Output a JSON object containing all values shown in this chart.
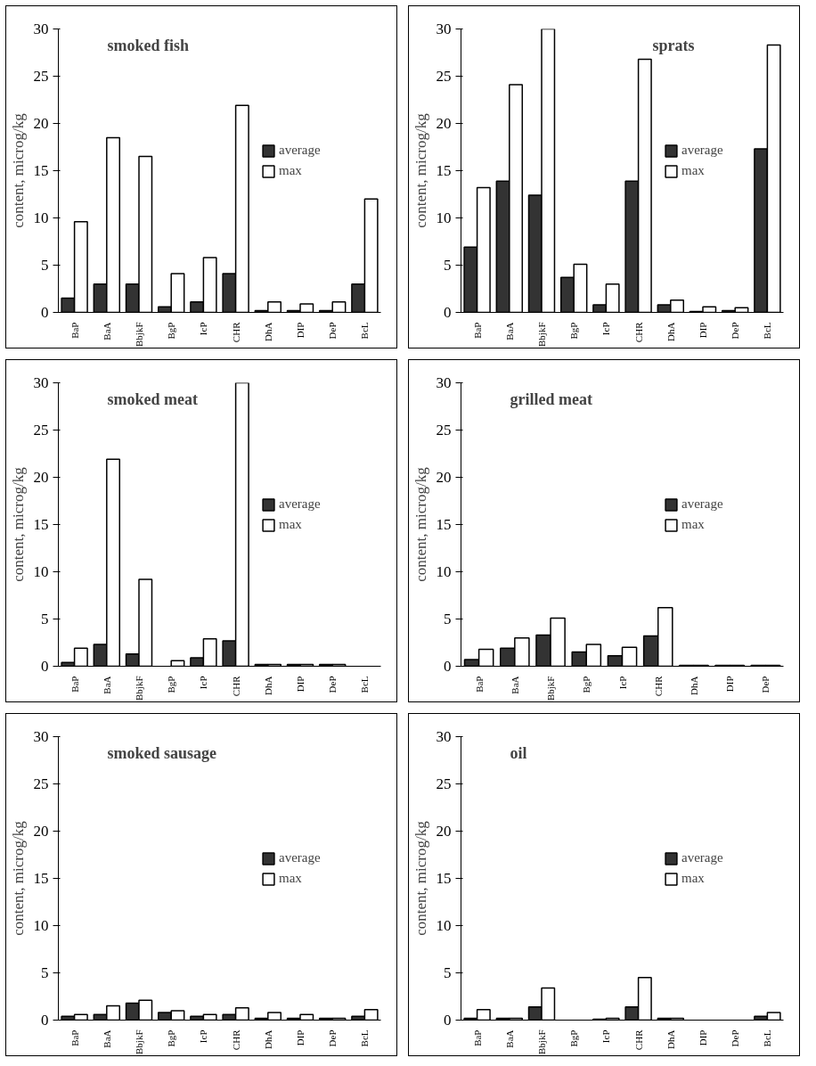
{
  "chart_data": [
    {
      "type": "bar",
      "title": "smoked fish",
      "ylabel": "content, microg/kg",
      "categories": [
        "BaP",
        "BaA",
        "BbjkF",
        "BgP",
        "IcP",
        "CHR",
        "DhA",
        "DIP",
        "DeP",
        "BcL"
      ],
      "ylim": [
        0,
        30
      ],
      "yticks": [
        0,
        5,
        10,
        15,
        20,
        25,
        30
      ],
      "grid": false,
      "legend": "right",
      "series": [
        {
          "name": "average",
          "color": "#333333",
          "values": [
            1.5,
            3,
            3,
            0.6,
            1.1,
            4.1,
            0.2,
            0.2,
            0.2,
            3
          ]
        },
        {
          "name": "max",
          "color": "#ffffff",
          "values": [
            9.6,
            18.5,
            16.5,
            4.1,
            5.8,
            21.9,
            1.1,
            0.9,
            1.1,
            12
          ]
        }
      ]
    },
    {
      "type": "bar",
      "title": "sprats",
      "ylabel": "content, microg/kg",
      "categories": [
        "BaP",
        "BaA",
        "BbjkF",
        "BgP",
        "IcP",
        "CHR",
        "DhA",
        "DIP",
        "DeP",
        "BcL"
      ],
      "ylim": [
        0,
        30
      ],
      "yticks": [
        0,
        5,
        10,
        15,
        20,
        25,
        30
      ],
      "grid": false,
      "legend": "right",
      "series": [
        {
          "name": "average",
          "color": "#333333",
          "values": [
            6.9,
            13.9,
            12.4,
            3.7,
            0.8,
            13.9,
            0.8,
            0.1,
            0.2,
            17.3
          ]
        },
        {
          "name": "max",
          "color": "#ffffff",
          "values": [
            13.2,
            24.1,
            30,
            5.1,
            3,
            26.8,
            1.3,
            0.6,
            0.5,
            28.3
          ]
        }
      ]
    },
    {
      "type": "bar",
      "title": "smoked meat",
      "ylabel": "content, microg/kg",
      "categories": [
        "BaP",
        "BaA",
        "BbjkF",
        "BgP",
        "IcP",
        "CHR",
        "DhA",
        "DIP",
        "DeP",
        "BcL"
      ],
      "ylim": [
        0,
        30
      ],
      "yticks": [
        0,
        5,
        10,
        15,
        20,
        25,
        30
      ],
      "grid": false,
      "legend": "right",
      "series": [
        {
          "name": "average",
          "color": "#333333",
          "values": [
            0.4,
            2.3,
            1.3,
            null,
            0.9,
            2.7,
            0.2,
            0.2,
            0.2,
            null
          ]
        },
        {
          "name": "max",
          "color": "#ffffff",
          "values": [
            1.9,
            21.9,
            9.2,
            0.6,
            2.9,
            30,
            0.2,
            0.2,
            0.2,
            null
          ]
        }
      ]
    },
    {
      "type": "bar",
      "title": "grilled meat",
      "ylabel": "content, microg/kg",
      "categories": [
        "BaP",
        "BaA",
        "BbjkF",
        "BgP",
        "IcP",
        "CHR",
        "DhA",
        "DIP",
        "DeP"
      ],
      "ylim": [
        0,
        30
      ],
      "yticks": [
        0,
        5,
        10,
        15,
        20,
        25,
        30
      ],
      "grid": false,
      "legend": "right",
      "series": [
        {
          "name": "average",
          "color": "#333333",
          "values": [
            0.7,
            1.9,
            3.3,
            1.5,
            1.1,
            3.2,
            0.1,
            0.1,
            0.1
          ]
        },
        {
          "name": "max",
          "color": "#ffffff",
          "values": [
            1.8,
            3,
            5.1,
            2.3,
            2,
            6.2,
            0.1,
            0.1,
            0.1
          ]
        }
      ]
    },
    {
      "type": "bar",
      "title": "smoked sausage",
      "ylabel": "content, microg/kg",
      "categories": [
        "BaP",
        "BaA",
        "BbjkF",
        "BgP",
        "IcP",
        "CHR",
        "DhA",
        "DIP",
        "DeP",
        "BcL"
      ],
      "ylim": [
        0,
        30
      ],
      "yticks": [
        0,
        5,
        10,
        15,
        20,
        25,
        30
      ],
      "grid": false,
      "legend": "right",
      "series": [
        {
          "name": "average",
          "color": "#333333",
          "values": [
            0.4,
            0.6,
            1.8,
            0.8,
            0.4,
            0.6,
            0.2,
            0.2,
            0.2,
            0.4
          ]
        },
        {
          "name": "max",
          "color": "#ffffff",
          "values": [
            0.6,
            1.5,
            2.1,
            1.0,
            0.6,
            1.3,
            0.8,
            0.6,
            0.2,
            1.1
          ]
        }
      ]
    },
    {
      "type": "bar",
      "title": "oil",
      "ylabel": "content, microg/kg",
      "categories": [
        "BaP",
        "BaA",
        "BbjkF",
        "BgP",
        "IcP",
        "CHR",
        "DhA",
        "DIP",
        "DeP",
        "BcL"
      ],
      "ylim": [
        0,
        30
      ],
      "yticks": [
        0,
        5,
        10,
        15,
        20,
        25,
        30
      ],
      "grid": false,
      "legend": "right",
      "series": [
        {
          "name": "average",
          "color": "#333333",
          "values": [
            0.2,
            0.2,
            1.4,
            null,
            0.1,
            1.4,
            0.2,
            null,
            null,
            0.4
          ]
        },
        {
          "name": "max",
          "color": "#ffffff",
          "values": [
            1.1,
            0.2,
            3.4,
            null,
            0.2,
            4.5,
            0.2,
            null,
            null,
            0.8
          ]
        }
      ]
    }
  ]
}
